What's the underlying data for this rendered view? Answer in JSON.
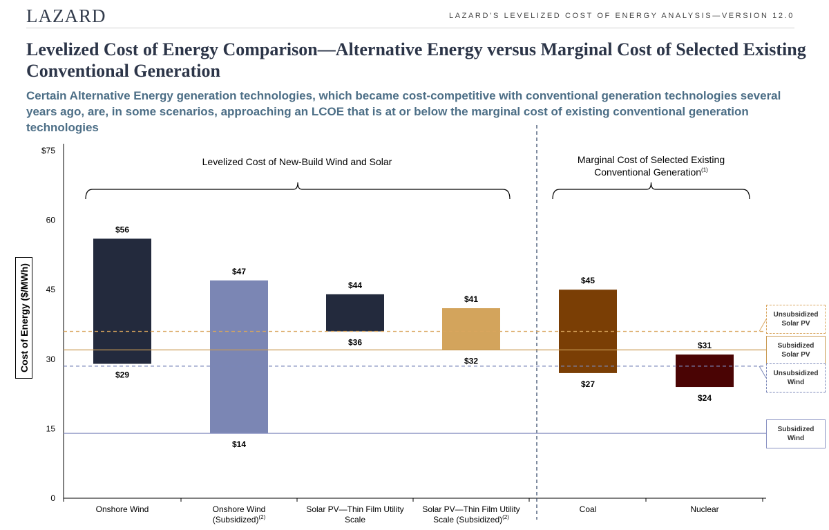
{
  "header": {
    "logo": "LAZARD",
    "report_title": "LAZARD’S LEVELIZED COST OF ENERGY ANALYSIS—VERSION 12.0"
  },
  "title": "Levelized Cost of Energy Comparison—Alternative Energy versus Marginal Cost of Selected Existing Conventional Generation",
  "subtitle": "Certain Alternative Energy generation technologies, which became cost-competitive with conventional generation technologies several years ago, are, in some scenarios, approaching an LCOE that is at or below the marginal cost of existing conventional generation technologies",
  "chart_data": {
    "type": "bar",
    "subtype": "floating-range",
    "ylabel": "Cost of Energy ($/MWh)",
    "ylim": [
      0,
      75
    ],
    "yticks": [
      0,
      15,
      30,
      45,
      60,
      75
    ],
    "ytick_labels": [
      "0",
      "15",
      "30",
      "45",
      "60",
      "$75"
    ],
    "grid": false,
    "categories": [
      {
        "line1": "Onshore Wind",
        "line2": "",
        "sup": ""
      },
      {
        "line1": "Onshore Wind",
        "line2": "(Subsidized)",
        "sup": "(2)"
      },
      {
        "line1": "Solar PV—Thin Film  Utility",
        "line2": "Scale",
        "sup": ""
      },
      {
        "line1": "Solar PV—Thin Film  Utility",
        "line2": "Scale (Subsidized)",
        "sup": "(2)"
      },
      {
        "line1": "Coal",
        "line2": "",
        "sup": ""
      },
      {
        "line1": "Nuclear",
        "line2": "",
        "sup": ""
      }
    ],
    "bars": [
      {
        "low": 29,
        "high": 56,
        "low_label": "$29",
        "high_label": "$56",
        "color": "#232a3d"
      },
      {
        "low": 14,
        "high": 47,
        "low_label": "$14",
        "high_label": "$47",
        "color": "#7b86b4"
      },
      {
        "low": 36,
        "high": 44,
        "low_label": "$36",
        "high_label": "$44",
        "color": "#232a3d"
      },
      {
        "low": 32,
        "high": 41,
        "low_label": "$32",
        "high_label": "$41",
        "color": "#d3a45c"
      },
      {
        "low": 27,
        "high": 45,
        "low_label": "$27",
        "high_label": "$45",
        "color": "#7a3e05"
      },
      {
        "low": 24,
        "high": 31,
        "low_label": "$24",
        "high_label": "$31",
        "color": "#4a0404"
      }
    ],
    "groups": [
      {
        "label": "Levelized Cost of New-Build Wind and Solar",
        "sup": "",
        "from": 0,
        "to": 3
      },
      {
        "label": "Marginal Cost of Selected Existing Conventional Generation",
        "sup": "(1)",
        "from": 4,
        "to": 5
      }
    ],
    "reference_lines": [
      {
        "name": "Unsubsidized Solar PV",
        "value": 36,
        "color": "#d9a55d",
        "style": "dashed"
      },
      {
        "name": "Subsidized Solar PV",
        "value": 32,
        "color": "#c99a52",
        "style": "solid"
      },
      {
        "name": "Unsubsidized Wind",
        "value": 28.5,
        "color": "#7a86b8",
        "style": "dashed"
      },
      {
        "name": "Subsidized Wind",
        "value": 14,
        "color": "#8b93c3",
        "style": "solid"
      }
    ]
  }
}
